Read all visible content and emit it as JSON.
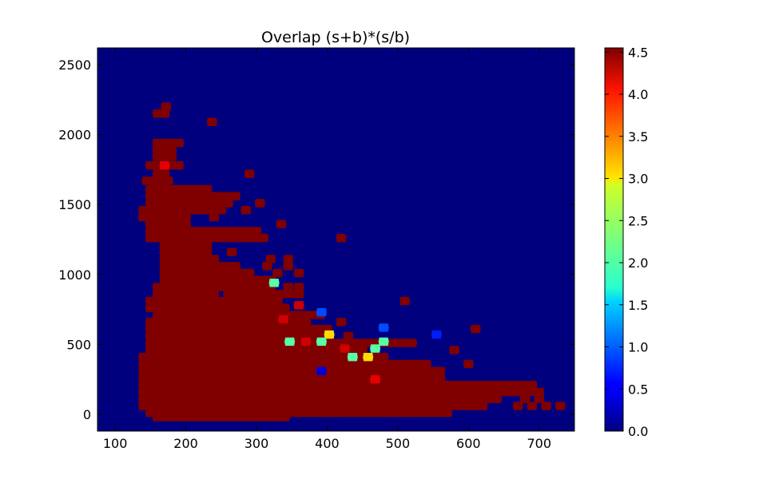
{
  "chart_data": {
    "type": "heatmap",
    "subtype": "hexbin",
    "title": "Overlap (s+b)*(s/b)",
    "xlabel": "",
    "ylabel": "",
    "xlim": [
      75,
      750
    ],
    "ylim": [
      -120,
      2620
    ],
    "x_ticks": [
      100,
      200,
      300,
      400,
      500,
      600,
      700
    ],
    "y_ticks": [
      0,
      500,
      1000,
      1500,
      2000,
      2500
    ],
    "colorbar": {
      "colormap": "jet",
      "min": 0.0,
      "max": 4.55,
      "ticks": [
        0.0,
        0.5,
        1.0,
        1.5,
        2.0,
        2.5,
        3.0,
        3.5,
        4.0,
        4.5
      ],
      "tick_labels": [
        "0.0",
        "0.5",
        "1.0",
        "1.5",
        "2.0",
        "2.5",
        "3.0",
        "3.5",
        "4.0",
        "4.5"
      ]
    },
    "background_value": 0.0,
    "saturated_value": 4.55,
    "saturated_rows": [
      {
        "y": 2200,
        "x": [
          [
            172,
            176
          ]
        ]
      },
      {
        "y": 2150,
        "x": [
          [
            160,
            170
          ]
        ]
      },
      {
        "y": 2090,
        "x": [
          [
            237,
            237
          ]
        ]
      },
      {
        "y": 1940,
        "x": [
          [
            160,
            190
          ]
        ]
      },
      {
        "y": 1890,
        "x": [
          [
            160,
            180
          ]
        ]
      },
      {
        "y": 1840,
        "x": [
          [
            160,
            185
          ]
        ]
      },
      {
        "y": 1780,
        "x": [
          [
            150,
            190
          ]
        ]
      },
      {
        "y": 1720,
        "x": [
          [
            160,
            170
          ]
        ],
        "extra": [
          290
        ]
      },
      {
        "y": 1670,
        "x": [
          [
            145,
            180
          ]
        ]
      },
      {
        "y": 1610,
        "x": [
          [
            150,
            230
          ]
        ]
      },
      {
        "y": 1560,
        "x": [
          [
            150,
            270
          ]
        ]
      },
      {
        "y": 1510,
        "x": [
          [
            150,
            260
          ]
        ],
        "extra": [
          305
        ]
      },
      {
        "y": 1460,
        "x": [
          [
            140,
            250
          ]
        ],
        "extra": [
          285
        ]
      },
      {
        "y": 1410,
        "x": [
          [
            140,
            200
          ]
        ],
        "extra": [
          240
        ]
      },
      {
        "y": 1360,
        "x": [
          [
            150,
            200
          ]
        ],
        "extra": [
          335
        ]
      },
      {
        "y": 1310,
        "x": [
          [
            150,
            300
          ]
        ]
      },
      {
        "y": 1260,
        "x": [
          [
            150,
            310
          ]
        ],
        "extra": [
          420
        ]
      },
      {
        "y": 1210,
        "x": [
          [
            170,
            230
          ]
        ]
      },
      {
        "y": 1160,
        "x": [
          [
            170,
            230
          ]
        ],
        "extra": [
          265
        ]
      },
      {
        "y": 1110,
        "x": [
          [
            170,
            240
          ]
        ],
        "extra": [
          320,
          345
        ]
      },
      {
        "y": 1060,
        "x": [
          [
            170,
            270
          ]
        ],
        "extra": [
          315,
          345
        ]
      },
      {
        "y": 1010,
        "x": [
          [
            170,
            290
          ]
        ],
        "extra": [
          330,
          360
        ]
      },
      {
        "y": 960,
        "x": [
          [
            170,
            320
          ]
        ]
      },
      {
        "y": 910,
        "x": [
          [
            160,
            320
          ]
        ],
        "extra": [
          345,
          360
        ]
      },
      {
        "y": 860,
        "x": [
          [
            160,
            240
          ],
          [
            260,
            360
          ]
        ]
      },
      {
        "y": 810,
        "x": [
          [
            150,
            330
          ]
        ],
        "extra": [
          510
        ]
      },
      {
        "y": 760,
        "x": [
          [
            150,
            340
          ]
        ]
      },
      {
        "y": 710,
        "x": [
          [
            160,
            390
          ]
        ]
      },
      {
        "y": 660,
        "x": [
          [
            150,
            370
          ]
        ],
        "extra": [
          420
        ]
      },
      {
        "y": 610,
        "x": [
          [
            150,
            400
          ]
        ],
        "extra": [
          610
        ]
      },
      {
        "y": 560,
        "x": [
          [
            150,
            400
          ]
        ],
        "extra": [
          430
        ]
      },
      {
        "y": 510,
        "x": [
          [
            150,
            520
          ]
        ]
      },
      {
        "y": 460,
        "x": [
          [
            150,
            450
          ]
        ],
        "extra": [
          580
        ]
      },
      {
        "y": 410,
        "x": [
          [
            140,
            480
          ]
        ]
      },
      {
        "y": 360,
        "x": [
          [
            140,
            540
          ]
        ],
        "extra": [
          600
        ]
      },
      {
        "y": 310,
        "x": [
          [
            140,
            560
          ]
        ]
      },
      {
        "y": 260,
        "x": [
          [
            140,
            560
          ]
        ]
      },
      {
        "y": 210,
        "x": [
          [
            140,
            690
          ]
        ]
      },
      {
        "y": 160,
        "x": [
          [
            140,
            700
          ]
        ]
      },
      {
        "y": 110,
        "x": [
          [
            140,
            640
          ]
        ],
        "extra": [
          680,
          700
        ]
      },
      {
        "y": 60,
        "x": [
          [
            140,
            620
          ]
        ],
        "extra": [
          670,
          690,
          710,
          730
        ]
      },
      {
        "y": 10,
        "x": [
          [
            150,
            570
          ]
        ]
      },
      {
        "y": -20,
        "x": [
          [
            160,
            340
          ]
        ]
      }
    ],
    "highlighted_bins": [
      {
        "x": 170,
        "y": 1780,
        "value": 4.1
      },
      {
        "x": 325,
        "y": 940,
        "value": 2.1
      },
      {
        "x": 360,
        "y": 780,
        "value": 4.2
      },
      {
        "x": 392,
        "y": 730,
        "value": 0.9
      },
      {
        "x": 338,
        "y": 680,
        "value": 4.2
      },
      {
        "x": 480,
        "y": 620,
        "value": 0.9
      },
      {
        "x": 555,
        "y": 570,
        "value": 0.7
      },
      {
        "x": 403,
        "y": 570,
        "value": 3.0
      },
      {
        "x": 347,
        "y": 520,
        "value": 2.1
      },
      {
        "x": 370,
        "y": 520,
        "value": 4.2
      },
      {
        "x": 392,
        "y": 520,
        "value": 2.1
      },
      {
        "x": 480,
        "y": 520,
        "value": 2.1
      },
      {
        "x": 425,
        "y": 470,
        "value": 4.2
      },
      {
        "x": 468,
        "y": 470,
        "value": 2.1
      },
      {
        "x": 436,
        "y": 410,
        "value": 2.1
      },
      {
        "x": 458,
        "y": 410,
        "value": 3.0
      },
      {
        "x": 392,
        "y": 310,
        "value": 0.4
      },
      {
        "x": 468,
        "y": 250,
        "value": 4.1
      }
    ]
  }
}
